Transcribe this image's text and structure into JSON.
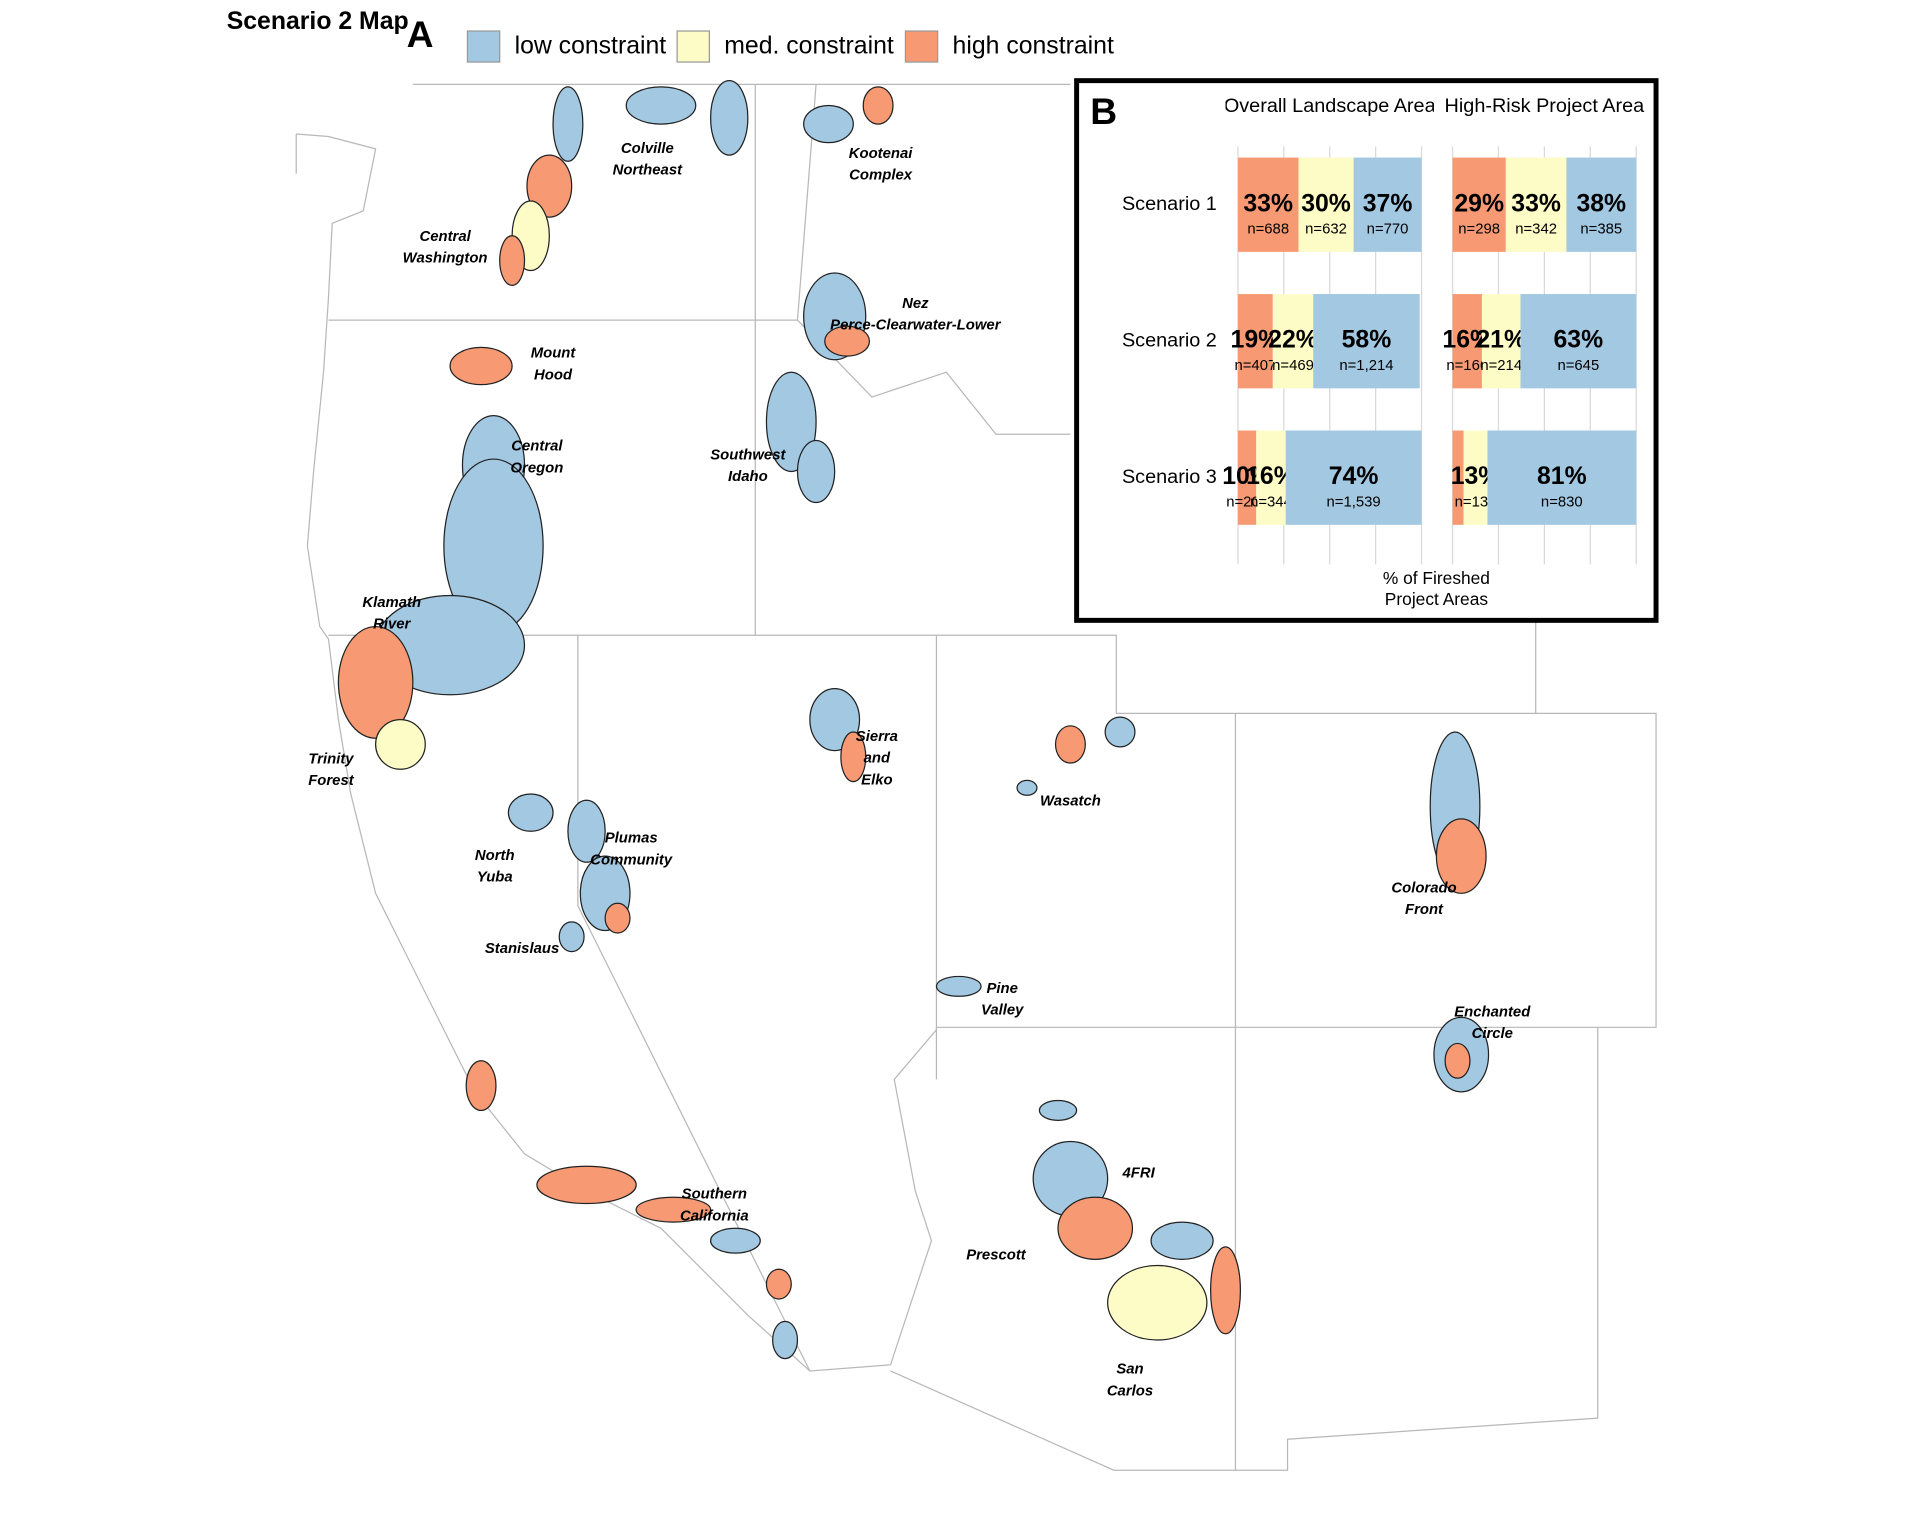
{
  "title": "Scenario 2 Map",
  "map": {
    "label": "A",
    "regions": [
      {
        "lines": [
          "Colville",
          "Northeast"
        ]
      },
      {
        "lines": [
          "Kootenai",
          "Complex"
        ]
      },
      {
        "lines": [
          "Central",
          "Washington"
        ]
      },
      {
        "lines": [
          "Nez",
          "Perce-Clearwater-Lower"
        ]
      },
      {
        "lines": [
          "Mount",
          "Hood"
        ]
      },
      {
        "lines": [
          "Central",
          "Oregon"
        ]
      },
      {
        "lines": [
          "Southwest",
          "Idaho"
        ]
      },
      {
        "lines": [
          "Klamath",
          "River"
        ]
      },
      {
        "lines": [
          "Trinity",
          "Forest"
        ]
      },
      {
        "lines": [
          "Sierra",
          "and",
          "Elko"
        ]
      },
      {
        "lines": [
          "Wasatch"
        ]
      },
      {
        "lines": [
          "North",
          "Yuba"
        ]
      },
      {
        "lines": [
          "Plumas",
          "Community"
        ]
      },
      {
        "lines": [
          "Colorado",
          "Front"
        ]
      },
      {
        "lines": [
          "Stanislaus"
        ]
      },
      {
        "lines": [
          "Pine",
          "Valley"
        ]
      },
      {
        "lines": [
          "Enchanted",
          "Circle"
        ]
      },
      {
        "lines": [
          "4FRI"
        ]
      },
      {
        "lines": [
          "Southern",
          "California"
        ]
      },
      {
        "lines": [
          "Prescott"
        ]
      },
      {
        "lines": [
          "San",
          "Carlos"
        ]
      }
    ]
  },
  "chart_data": {
    "type": "bar",
    "orientation": "horizontal",
    "stacked": true,
    "label": "B",
    "categories": [
      "Scenario 1",
      "Scenario 2",
      "Scenario 3"
    ],
    "xlabel": [
      "% of Fireshed",
      "Project Areas"
    ],
    "xlim": [
      0,
      100
    ],
    "xticks": [
      0,
      25,
      50,
      75,
      100
    ],
    "grid": true,
    "facets": [
      {
        "title": "Overall Landscape Area",
        "series": [
          {
            "name": "low constraint",
            "color": "#a3c8e2",
            "values": [
              37,
              58,
              74
            ],
            "value_labels": [
              "37%",
              "58%",
              "74%"
            ],
            "counts": [
              770,
              1214,
              1539
            ],
            "count_labels": [
              "n=770",
              "n=1,214",
              "n=1,539"
            ]
          },
          {
            "name": "med. constraint",
            "color": "#fdfcc7",
            "values": [
              30,
              22,
              16
            ],
            "value_labels": [
              "30%",
              "22%",
              "16%"
            ],
            "counts": [
              632,
              469,
              344
            ],
            "count_labels": [
              "n=632",
              "n=469",
              "n=344"
            ]
          },
          {
            "name": "high constraint",
            "color": "#f79a74",
            "values": [
              33,
              19,
              10
            ],
            "value_labels": [
              "33%",
              "19%",
              "10%"
            ],
            "counts": [
              688,
              407,
              207
            ],
            "count_labels": [
              "n=688",
              "n=407",
              "n=207"
            ]
          }
        ]
      },
      {
        "title": "High-Risk Project Area",
        "series": [
          {
            "name": "low constraint",
            "color": "#a3c8e2",
            "values": [
              38,
              63,
              81
            ],
            "value_labels": [
              "38%",
              "63%",
              "81%"
            ],
            "counts": [
              385,
              645,
              830
            ],
            "count_labels": [
              "n=385",
              "n=645",
              "n=830"
            ]
          },
          {
            "name": "med. constraint",
            "color": "#fdfcc7",
            "values": [
              33,
              21,
              13
            ],
            "value_labels": [
              "33%",
              "21%",
              "13%"
            ],
            "counts": [
              342,
              214,
              138
            ],
            "count_labels": [
              "n=342",
              "n=214",
              "n=138"
            ]
          },
          {
            "name": "high constraint",
            "color": "#f79a74",
            "values": [
              29,
              16,
              6
            ],
            "value_labels": [
              "29%",
              "16%",
              null
            ],
            "counts": [
              298,
              166,
              null
            ],
            "count_labels": [
              "n=298",
              "n=166",
              null
            ]
          }
        ]
      }
    ]
  }
}
